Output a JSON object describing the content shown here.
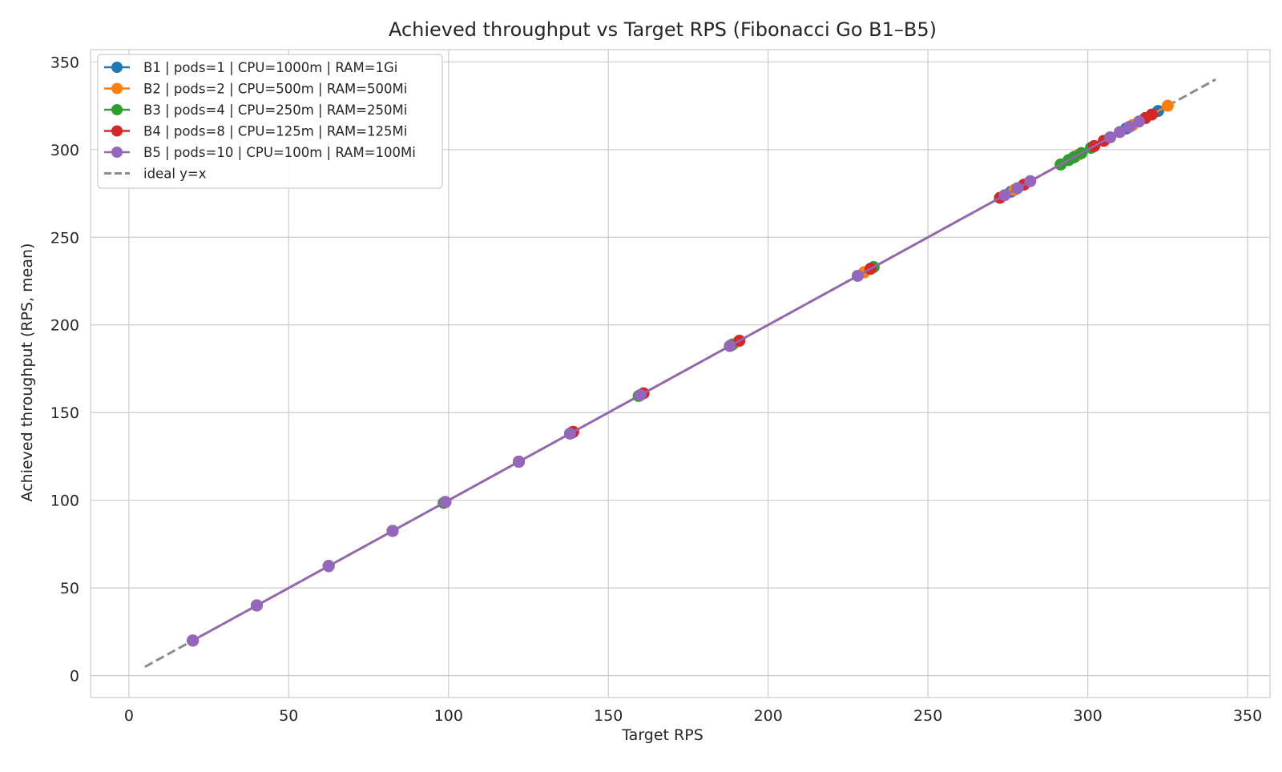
{
  "chart_data": {
    "type": "line",
    "title": "Achieved throughput vs Target RPS (Fibonacci Go B1–B5)",
    "xlabel": "Target RPS",
    "ylabel": "Achieved throughput (RPS, mean)",
    "xlim": [
      -12,
      357
    ],
    "ylim": [
      -12.5,
      357
    ],
    "xticks": [
      0,
      50,
      100,
      150,
      200,
      250,
      300,
      350
    ],
    "yticks": [
      0,
      50,
      100,
      150,
      200,
      250,
      300,
      350
    ],
    "grid": true,
    "legend_position": "top-left",
    "series": [
      {
        "name": "B1 | pods=1 | CPU=1000m | RAM=1Gi",
        "color": "#1f77b4",
        "x": [
          20,
          40,
          62.5,
          82.5,
          99,
          122,
          138.5,
          160,
          189,
          230,
          276,
          296,
          312,
          322
        ],
        "y": [
          20,
          40,
          62.5,
          82.5,
          99,
          122,
          138.5,
          160,
          189,
          230,
          276,
          296,
          312,
          322
        ]
      },
      {
        "name": "B2 | pods=2 | CPU=500m | RAM=500Mi",
        "color": "#ff7f0e",
        "x": [
          20,
          40,
          62.5,
          82.5,
          99,
          122,
          138.5,
          160,
          189,
          230,
          277,
          297,
          314,
          325
        ],
        "y": [
          20,
          40,
          62.5,
          82.5,
          99,
          122,
          138.5,
          160,
          189,
          230,
          277,
          297,
          314,
          325
        ]
      },
      {
        "name": "B3 | pods=4 | CPU=250m | RAM=250Mi",
        "color": "#2ca02c",
        "x": [
          20,
          40,
          62.5,
          82.5,
          98.5,
          122,
          138.5,
          159.5,
          188.5,
          233,
          291.5,
          294,
          295.5,
          298,
          301
        ],
        "y": [
          20,
          40,
          62.5,
          82.5,
          98.5,
          122,
          138.5,
          159.5,
          188.5,
          233,
          291.5,
          294,
          295.5,
          298,
          301
        ]
      },
      {
        "name": "B4 | pods=8 | CPU=125m | RAM=125Mi",
        "color": "#d62728",
        "x": [
          20,
          40,
          62.5,
          82.5,
          99,
          122,
          139,
          161,
          191,
          232,
          272.5,
          280,
          302,
          305,
          318,
          320
        ],
        "y": [
          20,
          40,
          62.5,
          82.5,
          99,
          122,
          139,
          161,
          191,
          232,
          272.5,
          280,
          302,
          305,
          318,
          320
        ]
      },
      {
        "name": "B5 | pods=10 | CPU=100m | RAM=100Mi",
        "color": "#9467bd",
        "x": [
          20,
          40,
          62.5,
          82.5,
          99,
          122,
          138,
          160,
          188,
          228,
          274,
          278,
          282,
          307,
          310,
          313,
          316
        ],
        "y": [
          20,
          40,
          62.5,
          82.5,
          99,
          122,
          138,
          160,
          188,
          228,
          274,
          278,
          282,
          307,
          310,
          313,
          316
        ]
      }
    ],
    "reference_line": {
      "name": "ideal y=x",
      "color": "#8c8c8c",
      "x": [
        5,
        340
      ],
      "y": [
        5,
        340
      ]
    }
  }
}
